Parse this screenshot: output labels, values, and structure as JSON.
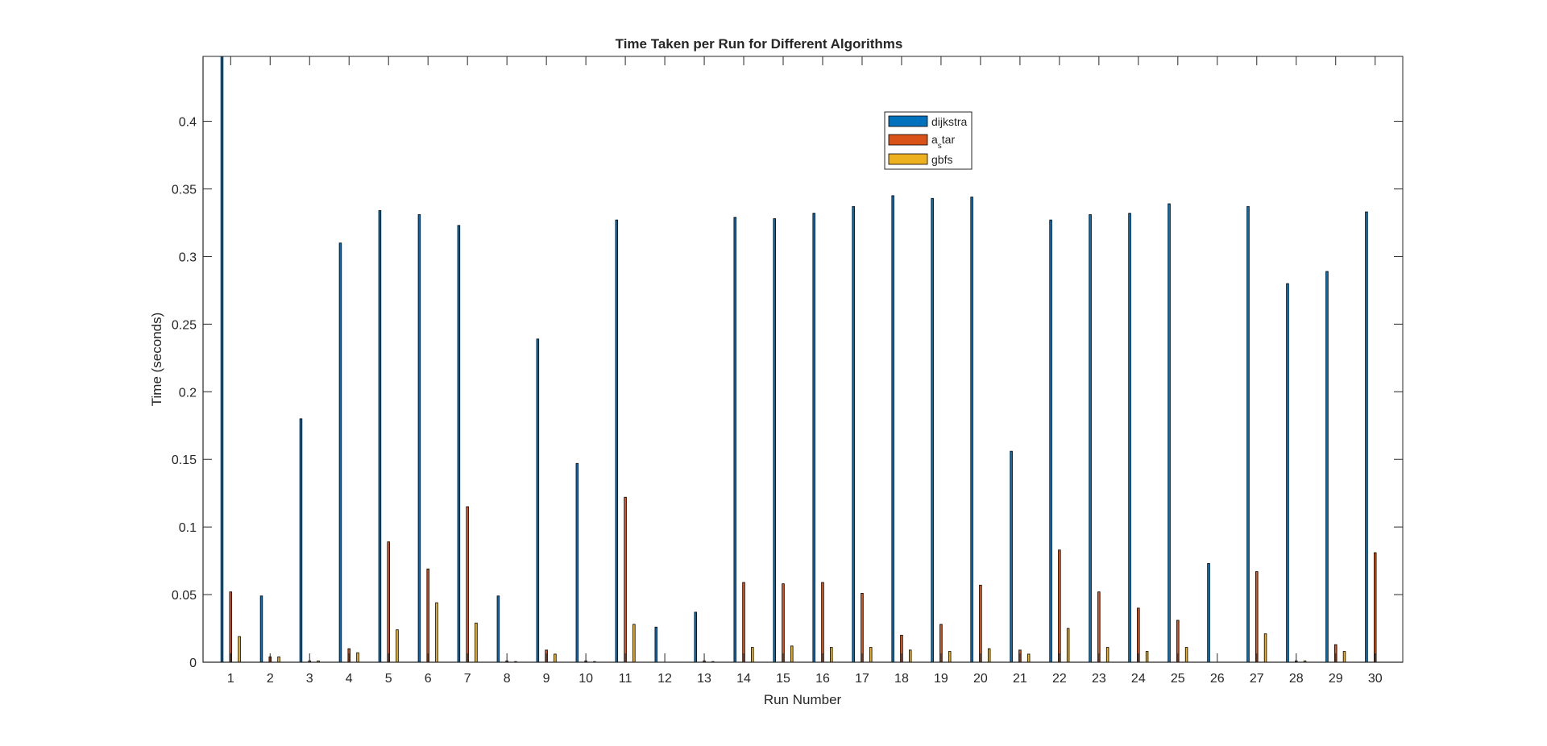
{
  "chart_data": {
    "type": "bar",
    "title": "Time Taken per Run for Different Algorithms",
    "xlabel": "Run Number",
    "ylabel": "Time (seconds)",
    "categories": [
      "1",
      "2",
      "3",
      "4",
      "5",
      "6",
      "7",
      "8",
      "9",
      "10",
      "11",
      "12",
      "13",
      "14",
      "15",
      "16",
      "17",
      "18",
      "19",
      "20",
      "21",
      "22",
      "23",
      "24",
      "25",
      "26",
      "27",
      "28",
      "29",
      "30"
    ],
    "xticks": [
      "1",
      "2",
      "3",
      "4",
      "5",
      "6",
      "7",
      "8",
      "9",
      "10",
      "11",
      "12",
      "13",
      "14",
      "15",
      "16",
      "17",
      "18",
      "19",
      "20",
      "21",
      "22",
      "23",
      "24",
      "25",
      "26",
      "27",
      "28",
      "29",
      "30"
    ],
    "yticks": [
      "0",
      "0.05",
      "0.1",
      "0.15",
      "0.2",
      "0.25",
      "0.3",
      "0.35",
      "0.4"
    ],
    "ytick_values": [
      0,
      0.05,
      0.1,
      0.15,
      0.2,
      0.25,
      0.3,
      0.35,
      0.4
    ],
    "ylim": [
      0,
      0.448
    ],
    "grid": false,
    "legend_position": "top-center",
    "legend_entries": [
      "dijkstra",
      "a_s tar",
      "gbfs"
    ],
    "series": [
      {
        "name": "dijkstra",
        "color": "#0072BD",
        "values": [
          0.448,
          0.049,
          0.18,
          0.31,
          0.334,
          0.331,
          0.323,
          0.049,
          0.239,
          0.147,
          0.327,
          0.026,
          0.037,
          0.329,
          0.328,
          0.332,
          0.337,
          0.345,
          0.343,
          0.344,
          0.156,
          0.327,
          0.331,
          0.332,
          0.339,
          0.073,
          0.337,
          0.28,
          0.289,
          0.333
        ]
      },
      {
        "name": "a_s tar",
        "color": "#D95319",
        "values": [
          0.052,
          0.004,
          0.001,
          0.01,
          0.089,
          0.069,
          0.115,
          0.001,
          0.009,
          0.001,
          0.122,
          0.0,
          0.001,
          0.059,
          0.058,
          0.059,
          0.051,
          0.02,
          0.028,
          0.057,
          0.009,
          0.083,
          0.052,
          0.04,
          0.031,
          0.0,
          0.067,
          0.001,
          0.013,
          0.081
        ]
      },
      {
        "name": "gbfs",
        "color": "#EDB120",
        "values": [
          0.019,
          0.004,
          0.001,
          0.007,
          0.024,
          0.044,
          0.029,
          0.0005,
          0.006,
          0.0005,
          0.028,
          0.0,
          0.0005,
          0.011,
          0.012,
          0.011,
          0.011,
          0.009,
          0.008,
          0.01,
          0.006,
          0.025,
          0.011,
          0.008,
          0.011,
          0.0,
          0.021,
          0.001,
          0.008,
          0.0
        ]
      }
    ]
  }
}
